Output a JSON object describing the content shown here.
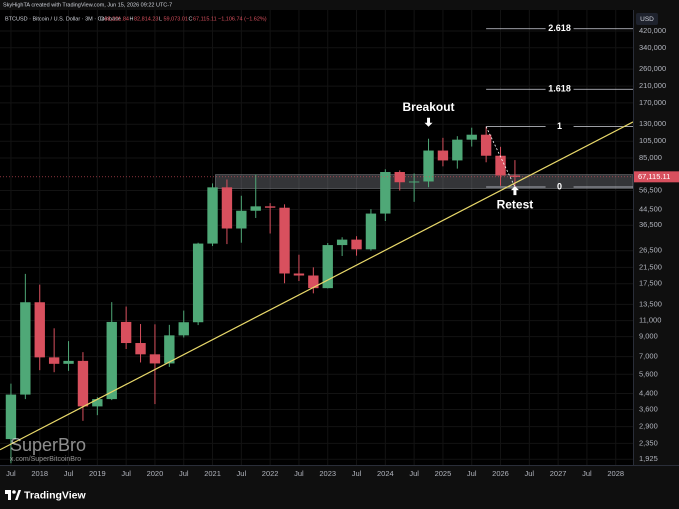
{
  "header": {
    "credit": "SkyHighTA created with TradingView.com, Jun 15, 2026 09:22 UTC-7"
  },
  "chart_data": {
    "type": "candlestick",
    "symbol": "BTCUSD · Bitcoin / U.S. Dollar · 3M · Coinbase",
    "ohlc_legend": [
      {
        "key": "O",
        "value": "68,221.84"
      },
      {
        "key": "H",
        "value": "82,814.23"
      },
      {
        "key": "L",
        "value": "59,073.01"
      },
      {
        "key": "C",
        "value": "67,115.11"
      }
    ],
    "change": "−1,106.74 (−1.62%)",
    "currency": "USD",
    "log_scale": true,
    "up_color": "#4fa877",
    "down_color": "#d8505e",
    "open": [
      2480,
      4340,
      13860,
      6930,
      6390,
      6630,
      3740,
      4100,
      10820,
      8300,
      7200,
      6420,
      9140,
      10780,
      28990,
      58800,
      35040,
      43800,
      46300,
      45500,
      19900,
      19400,
      16550,
      28450,
      30470,
      26960,
      42280,
      71300,
      62700,
      63300,
      93400,
      82500,
      107100,
      114000,
      87500,
      68221.84
    ],
    "high": [
      4980,
      19800,
      17300,
      9990,
      8500,
      7400,
      4200,
      13880,
      13130,
      10540,
      10500,
      10430,
      12480,
      29300,
      61800,
      64900,
      52900,
      69000,
      48200,
      47500,
      25200,
      21500,
      29200,
      31400,
      31800,
      44700,
      73800,
      72800,
      70000,
      108400,
      109600,
      111900,
      124500,
      126200,
      97900,
      82814.23
    ],
    "low": [
      1830,
      4100,
      5900,
      5750,
      5850,
      3120,
      3350,
      4050,
      7700,
      6500,
      3850,
      6150,
      8900,
      10400,
      28100,
      28800,
      29300,
      40000,
      32900,
      17600,
      18100,
      15500,
      16500,
      24800,
      24900,
      26500,
      38500,
      56500,
      49000,
      58900,
      76600,
      74400,
      98200,
      80600,
      60000,
      59073.01
    ],
    "close": [
      4340,
      13860,
      6930,
      6390,
      6630,
      3740,
      4100,
      10820,
      8300,
      7200,
      6420,
      9140,
      10780,
      28990,
      58800,
      35040,
      43800,
      46300,
      45500,
      19900,
      19400,
      16550,
      28450,
      30470,
      26960,
      42280,
      71300,
      62700,
      63300,
      93400,
      82500,
      107100,
      114000,
      87500,
      68221.84,
      67115.11
    ],
    "last_price_label": "67,115.11",
    "xlim": [
      -0.76,
      43.2
    ],
    "xticks": [
      {
        "value": 0,
        "label": "Jul"
      },
      {
        "value": 2,
        "label": "2018"
      },
      {
        "value": 4,
        "label": "Jul"
      },
      {
        "value": 6,
        "label": "2019"
      },
      {
        "value": 8,
        "label": "Jul"
      },
      {
        "value": 10,
        "label": "2020"
      },
      {
        "value": 12,
        "label": "Jul"
      },
      {
        "value": 14,
        "label": "2021"
      },
      {
        "value": 16,
        "label": "Jul"
      },
      {
        "value": 18,
        "label": "2022"
      },
      {
        "value": 20,
        "label": "Jul"
      },
      {
        "value": 22,
        "label": "2023"
      },
      {
        "value": 24,
        "label": "Jul"
      },
      {
        "value": 26,
        "label": "2024"
      },
      {
        "value": 28,
        "label": "Jul"
      },
      {
        "value": 30,
        "label": "2025"
      },
      {
        "value": 32,
        "label": "Jul"
      },
      {
        "value": 34,
        "label": "2026"
      },
      {
        "value": 36,
        "label": "Jul"
      },
      {
        "value": 38,
        "label": "2027"
      },
      {
        "value": 40,
        "label": "Jul"
      },
      {
        "value": 42,
        "label": "2028"
      }
    ],
    "ylim": [
      1790,
      547000
    ],
    "yticks": [
      {
        "value": 420000,
        "label": "420,000"
      },
      {
        "value": 340000,
        "label": "340,000"
      },
      {
        "value": 260000,
        "label": "260,000"
      },
      {
        "value": 210000,
        "label": "210,000"
      },
      {
        "value": 170000,
        "label": "170,000"
      },
      {
        "value": 130000,
        "label": "130,000"
      },
      {
        "value": 105000,
        "label": "105,000"
      },
      {
        "value": 85000,
        "label": "85,000"
      },
      {
        "value": 56500,
        "label": "56,500"
      },
      {
        "value": 44500,
        "label": "44,500"
      },
      {
        "value": 36500,
        "label": "36,500"
      },
      {
        "value": 26500,
        "label": "26,500"
      },
      {
        "value": 21500,
        "label": "21,500"
      },
      {
        "value": 17500,
        "label": "17,500"
      },
      {
        "value": 13500,
        "label": "13,500"
      },
      {
        "value": 11000,
        "label": "11,000"
      },
      {
        "value": 9000,
        "label": "9,000"
      },
      {
        "value": 7000,
        "label": "7,000"
      },
      {
        "value": 5600,
        "label": "5,600"
      },
      {
        "value": 4400,
        "label": "4,400"
      },
      {
        "value": 3600,
        "label": "3,600"
      },
      {
        "value": 2900,
        "label": "2,900"
      },
      {
        "value": 2350,
        "label": "2,350"
      },
      {
        "value": 1925,
        "label": "1,925"
      }
    ],
    "grid": true,
    "zone": {
      "x_start": 14.2,
      "low": 58000,
      "high": 69000
    },
    "fib_levels": [
      {
        "level": 2.618,
        "price": 432000
      },
      {
        "level": 1.618,
        "price": 201900
      },
      {
        "level": 1,
        "price": 126200
      },
      {
        "level": 0,
        "price": 59073.01
      }
    ],
    "fib_x_start": 33,
    "trendline": {
      "x": [
        5.5,
        43.2
      ],
      "y": [
        3900,
        133800
      ],
      "color": "#e8d86a"
    },
    "annotations": [
      {
        "text": "Breakout",
        "x": 29,
        "y": 160000
      },
      {
        "text": "Retest",
        "x": 35,
        "y": 47000
      }
    ]
  },
  "watermark": {
    "name": "SuperBro",
    "handle": "x.com/SuperBitcoinBro"
  },
  "footer": {
    "brand": "TradingView"
  }
}
